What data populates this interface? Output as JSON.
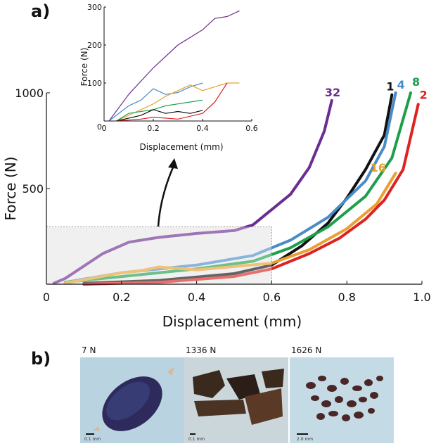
{
  "panel_labels": {
    "a": "a)",
    "b": "b)"
  },
  "chart_data": [
    {
      "type": "line",
      "title": "",
      "xlabel": "Displacement (mm)",
      "ylabel": "Force (N)",
      "xlim": [
        0,
        1.0
      ],
      "ylim": [
        0,
        1000
      ],
      "xticks": [
        0,
        0.2,
        0.4,
        0.6,
        0.8,
        1.0
      ],
      "xtick_labels": [
        "0",
        "0.2",
        "0.4",
        "0.6",
        "0.8",
        "1.0"
      ],
      "yticks": [
        500,
        1000
      ],
      "ytick_labels": [
        "500",
        "1000"
      ],
      "grid": false,
      "highlight_region": {
        "x": [
          0,
          0.6
        ],
        "y": [
          0,
          300
        ]
      },
      "series": [
        {
          "name": "32",
          "color": "#6b2d8f",
          "x": [
            0.02,
            0.05,
            0.15,
            0.22,
            0.3,
            0.4,
            0.5,
            0.55,
            0.6,
            0.65,
            0.7,
            0.74,
            0.76
          ],
          "y": [
            5,
            30,
            160,
            220,
            245,
            265,
            280,
            310,
            390,
            470,
            610,
            800,
            960
          ]
        },
        {
          "name": "1",
          "color": "#111111",
          "x": [
            0.1,
            0.3,
            0.5,
            0.6,
            0.68,
            0.75,
            0.8,
            0.85,
            0.9,
            0.92
          ],
          "y": [
            5,
            20,
            55,
            100,
            200,
            320,
            450,
            600,
            780,
            990
          ]
        },
        {
          "name": "4",
          "color": "#4a8cc8",
          "x": [
            0.05,
            0.2,
            0.4,
            0.55,
            0.65,
            0.75,
            0.85,
            0.9,
            0.93
          ],
          "y": [
            10,
            60,
            100,
            150,
            230,
            350,
            540,
            720,
            1000
          ]
        },
        {
          "name": "8",
          "color": "#1e9e4a",
          "x": [
            0.05,
            0.2,
            0.4,
            0.55,
            0.65,
            0.75,
            0.85,
            0.92,
            0.97
          ],
          "y": [
            10,
            40,
            80,
            120,
            190,
            300,
            460,
            660,
            1000
          ]
        },
        {
          "name": "16",
          "color": "#e8a030",
          "x": [
            0.05,
            0.2,
            0.25,
            0.3,
            0.4,
            0.6,
            0.7,
            0.8,
            0.88,
            0.93
          ],
          "y": [
            5,
            60,
            70,
            90,
            75,
            110,
            180,
            290,
            420,
            580
          ]
        },
        {
          "name": "2",
          "color": "#dd2222",
          "x": [
            0.1,
            0.3,
            0.5,
            0.6,
            0.7,
            0.78,
            0.85,
            0.9,
            0.95,
            0.99
          ],
          "y": [
            0,
            10,
            40,
            80,
            160,
            240,
            340,
            440,
            600,
            940
          ]
        }
      ]
    },
    {
      "type": "line",
      "title": "",
      "xlabel": "Displacement (mm)",
      "ylabel": "Force (N)",
      "xlim": [
        0,
        0.6
      ],
      "ylim": [
        0,
        300
      ],
      "xticks": [
        0,
        0.2,
        0.4,
        0.6
      ],
      "xtick_labels": [
        "0",
        "0.2",
        "0.4",
        "0.6"
      ],
      "yticks": [
        0,
        100,
        200,
        300
      ],
      "ytick_labels": [
        "0",
        "100",
        "200",
        "300"
      ],
      "grid": false,
      "series": [
        {
          "name": "32",
          "color": "#6b2d8f",
          "x": [
            0.02,
            0.1,
            0.2,
            0.3,
            0.4,
            0.45,
            0.5,
            0.55
          ],
          "y": [
            0,
            70,
            140,
            200,
            240,
            270,
            275,
            290
          ]
        },
        {
          "name": "4",
          "color": "#4a8cc8",
          "x": [
            0.02,
            0.1,
            0.15,
            0.2,
            0.25,
            0.3,
            0.35,
            0.4
          ],
          "y": [
            0,
            40,
            55,
            85,
            70,
            75,
            90,
            100
          ]
        },
        {
          "name": "16",
          "color": "#e8a030",
          "x": [
            0.05,
            0.2,
            0.25,
            0.3,
            0.35,
            0.4,
            0.45,
            0.5,
            0.55
          ],
          "y": [
            0,
            45,
            65,
            80,
            95,
            80,
            90,
            100,
            100
          ]
        },
        {
          "name": "8",
          "color": "#1e9e4a",
          "x": [
            0.05,
            0.1,
            0.2,
            0.25,
            0.3,
            0.35,
            0.4
          ],
          "y": [
            0,
            20,
            30,
            40,
            45,
            50,
            55
          ]
        },
        {
          "name": "1",
          "color": "#111111",
          "x": [
            0.05,
            0.15,
            0.2,
            0.25,
            0.3,
            0.35,
            0.4
          ],
          "y": [
            0,
            15,
            30,
            20,
            25,
            20,
            28
          ]
        },
        {
          "name": "2",
          "color": "#dd2222",
          "x": [
            0.05,
            0.15,
            0.2,
            0.3,
            0.4,
            0.45,
            0.5
          ],
          "y": [
            0,
            5,
            10,
            5,
            20,
            50,
            100
          ]
        }
      ]
    }
  ],
  "photos": [
    {
      "title": "7 N",
      "scale": "0.1 mm",
      "bg": "#b8d4e0",
      "subject": "#2e2a5c"
    },
    {
      "title": "1336 N",
      "scale": "0.1 mm",
      "bg": "#c8d4d8",
      "subject": "#3a2a1e"
    },
    {
      "title": "1626 N",
      "scale": "2.0 mm",
      "bg": "#c4dbe6",
      "subject": "#4a2626"
    }
  ]
}
